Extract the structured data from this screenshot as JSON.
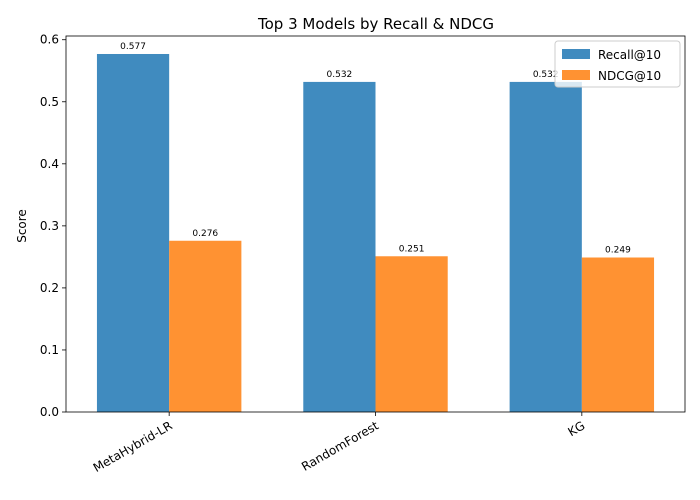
{
  "chart_data": {
    "type": "bar",
    "title": "Top 3 Models by Recall & NDCG",
    "xlabel": "",
    "ylabel": "Score",
    "categories": [
      "MetaHybrid-LR",
      "RandomForest",
      "KG"
    ],
    "series": [
      {
        "name": "Recall@10",
        "values": [
          0.577,
          0.532,
          0.532
        ],
        "labels": [
          "0.577",
          "0.532",
          "0.532"
        ],
        "color": "#1f77b4"
      },
      {
        "name": "NDCG@10",
        "values": [
          0.276,
          0.251,
          0.249
        ],
        "labels": [
          "0.276",
          "0.251",
          "0.249"
        ],
        "color": "#ff7f0e"
      }
    ],
    "ylim": [
      0,
      0.606
    ],
    "yticks": [
      0.0,
      0.1,
      0.2,
      0.3,
      0.4,
      0.5,
      0.6
    ],
    "ytick_labels": [
      "0.0",
      "0.1",
      "0.2",
      "0.3",
      "0.4",
      "0.5",
      "0.6"
    ],
    "grid": false,
    "legend_position": "top-right"
  }
}
